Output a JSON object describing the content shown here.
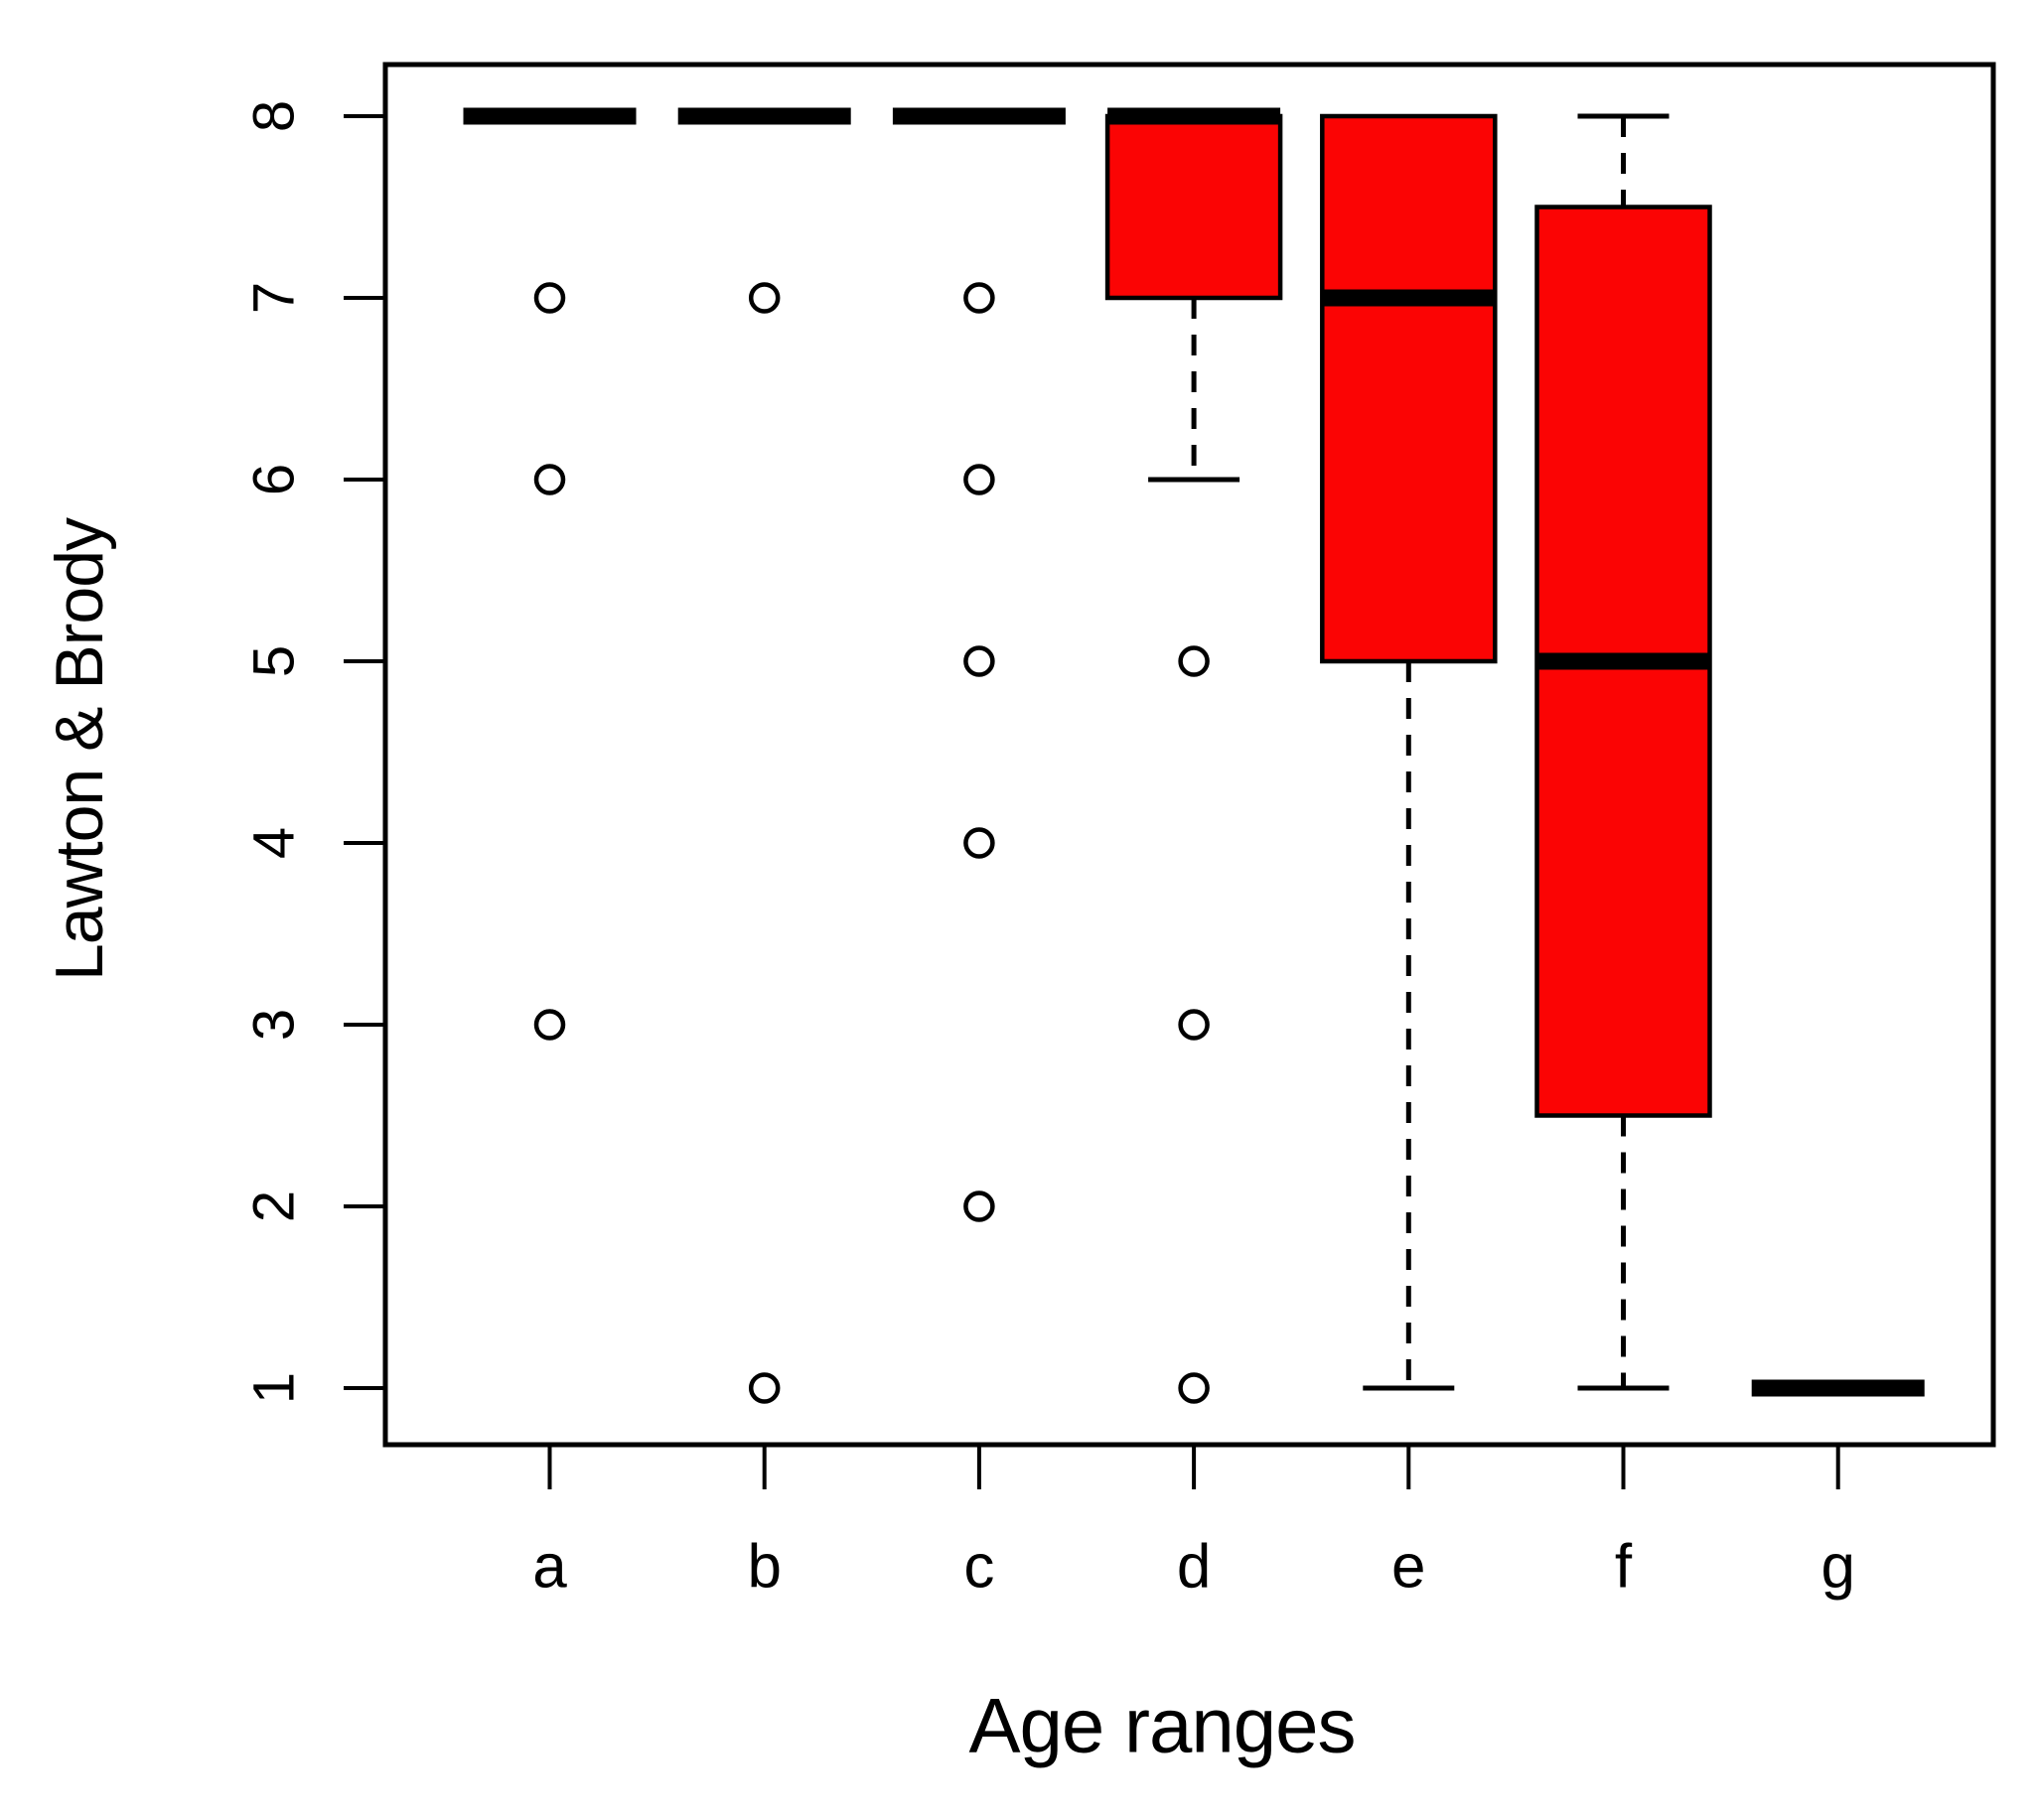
{
  "page": {
    "background": "#ffffff"
  },
  "chart_data": {
    "type": "boxplot",
    "title": "",
    "xlabel": "Age ranges",
    "ylabel": "Lawton & Brody",
    "categories": [
      "a",
      "b",
      "c",
      "d",
      "e",
      "f",
      "g"
    ],
    "y_ticks": [
      1,
      2,
      3,
      4,
      5,
      6,
      7,
      8
    ],
    "ylim": [
      0.7,
      8.3
    ],
    "grid": false,
    "legend": "none",
    "colors": {
      "box_fill": "#fb0404",
      "line": "#000000",
      "outlier_fill": "#ffffff",
      "background": "#ffffff"
    },
    "boxes": [
      {
        "category": "a",
        "min": 8,
        "q1": 8,
        "median": 8,
        "q3": 8,
        "max": 8,
        "outliers": [
          7,
          6,
          3
        ]
      },
      {
        "category": "b",
        "min": 8,
        "q1": 8,
        "median": 8,
        "q3": 8,
        "max": 8,
        "outliers": [
          7,
          1
        ]
      },
      {
        "category": "c",
        "min": 8,
        "q1": 8,
        "median": 8,
        "q3": 8,
        "max": 8,
        "outliers": [
          7,
          6,
          5,
          4,
          2
        ]
      },
      {
        "category": "d",
        "min": 6,
        "q1": 7,
        "median": 8,
        "q3": 8,
        "max": 8,
        "outliers": [
          5,
          3,
          1
        ]
      },
      {
        "category": "e",
        "min": 1,
        "q1": 5,
        "median": 7,
        "q3": 8,
        "max": 8,
        "outliers": []
      },
      {
        "category": "f",
        "min": 1,
        "q1": 2.5,
        "median": 5,
        "q3": 7.5,
        "max": 8,
        "outliers": []
      },
      {
        "category": "g",
        "min": 1,
        "q1": 1,
        "median": 1,
        "q3": 1,
        "max": 1,
        "outliers": []
      }
    ]
  }
}
